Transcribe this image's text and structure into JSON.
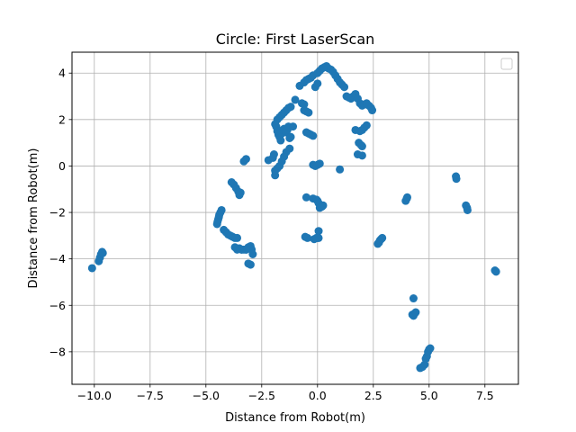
{
  "chart_data": {
    "type": "scatter",
    "title": "Circle: First LaserScan",
    "xlabel": "Distance from Robot(m)",
    "ylabel": "Distance from Robot(m)",
    "xlim": [
      -11.0,
      9.0
    ],
    "ylim": [
      -9.4,
      4.9
    ],
    "x_ticks": [
      -10.0,
      -7.5,
      -5.0,
      -2.5,
      0.0,
      2.5,
      5.0,
      7.5
    ],
    "x_tick_labels": [
      "−10.0",
      "−7.5",
      "−5.0",
      "−2.5",
      "0.0",
      "2.5",
      "5.0",
      "7.5"
    ],
    "y_ticks": [
      4,
      2,
      0,
      -2,
      -4,
      -6,
      -8
    ],
    "y_tick_labels": [
      "4",
      "2",
      "0",
      "−2",
      "−4",
      "−6",
      "−8"
    ],
    "grid": true,
    "legend": "top-right (empty)",
    "color": "#1f77b4",
    "series": [
      {
        "x": [
          -10.1,
          -9.8,
          -9.75,
          -9.7,
          -9.65,
          -9.62,
          -4.5,
          -4.48,
          -4.45,
          -4.42,
          -4.4,
          -4.35,
          -4.3,
          -4.2,
          -4.1,
          -4.0,
          -3.9,
          -3.8,
          -3.7,
          -3.6,
          -3.5,
          -3.4,
          -3.3,
          -3.2,
          -3.1,
          -3.0,
          -2.95,
          -2.9,
          -3.0,
          -3.1,
          -3.2,
          -3.4,
          -3.5,
          -3.6,
          -3.7,
          -3.85,
          -3.75,
          -3.65,
          -3.55,
          -3.5,
          -3.45,
          -3.3,
          -3.2,
          -2.2,
          -2.0,
          -1.95,
          -1.9,
          -1.9,
          -1.85,
          -1.8,
          -1.75,
          -1.7,
          -1.65,
          -1.6,
          -1.55,
          -1.5,
          -1.45,
          -1.4,
          -1.35,
          -1.3,
          -1.25,
          -1.2,
          -1.1,
          -1.8,
          -1.7,
          -1.6,
          -1.5,
          -1.4,
          -1.3,
          -1.2,
          -1.9,
          -1.8,
          -1.7,
          -1.6,
          -1.5,
          -1.4,
          -1.25,
          -1.0,
          -0.7,
          -0.6,
          -0.5,
          -0.4,
          -0.3,
          -0.2,
          -0.1,
          0.0,
          -0.8,
          -0.6,
          -0.5,
          -0.4,
          -0.3,
          -0.2,
          0.0,
          0.1,
          0.2,
          0.3,
          0.4,
          0.5,
          0.6,
          0.7,
          0.8,
          0.9,
          1.0,
          1.1,
          1.2,
          1.3,
          1.4,
          1.5,
          1.6,
          1.7,
          1.8,
          1.9,
          2.0,
          2.1,
          2.2,
          2.3,
          2.4,
          2.45,
          1.7,
          1.9,
          2.0,
          2.1,
          2.2,
          1.85,
          1.95,
          2.0,
          1.8,
          2.0,
          -0.6,
          -0.5,
          -0.4,
          -0.2,
          -0.1,
          0.0,
          0.1,
          -0.5,
          -0.2,
          -0.05,
          0.0,
          0.05,
          0.1,
          0.2,
          0.25,
          -0.05,
          0.0,
          0.05,
          1.0,
          -0.55,
          -0.45,
          -0.15,
          0.05,
          2.7,
          2.75,
          2.8,
          2.85,
          2.9,
          3.95,
          4.0,
          4.02,
          6.2,
          6.22,
          6.65,
          6.7,
          6.72,
          7.95,
          8.0,
          4.3,
          4.25,
          4.3,
          4.35,
          4.4,
          4.6,
          4.7,
          4.8,
          4.85,
          4.9,
          4.95,
          5.0,
          5.05
        ],
        "y": [
          -4.4,
          -4.1,
          -3.95,
          -3.8,
          -3.7,
          -3.75,
          -2.5,
          -2.4,
          -2.3,
          -2.2,
          -2.1,
          -2.0,
          -1.9,
          -2.75,
          -2.85,
          -2.95,
          -3.0,
          -3.05,
          -3.1,
          -3.1,
          -3.55,
          -3.6,
          -3.6,
          -3.6,
          -3.5,
          -3.45,
          -3.6,
          -3.8,
          -4.25,
          -4.2,
          -3.6,
          -3.6,
          -3.55,
          -3.6,
          -3.5,
          -0.7,
          -0.8,
          -0.95,
          -1.1,
          -1.25,
          -1.15,
          0.2,
          0.3,
          0.25,
          0.35,
          0.5,
          -0.4,
          1.8,
          1.7,
          1.5,
          1.35,
          1.25,
          1.1,
          1.4,
          1.55,
          1.6,
          1.5,
          1.45,
          1.55,
          1.7,
          1.2,
          1.25,
          1.7,
          2.0,
          2.1,
          2.2,
          2.3,
          2.4,
          2.5,
          2.55,
          -0.2,
          -0.1,
          0.0,
          0.2,
          0.4,
          0.6,
          0.75,
          2.85,
          2.7,
          2.65,
          1.45,
          1.4,
          1.35,
          1.3,
          3.4,
          3.55,
          3.45,
          3.6,
          3.7,
          3.75,
          3.8,
          3.9,
          4.0,
          4.1,
          4.2,
          4.25,
          4.3,
          4.2,
          4.15,
          4.05,
          3.9,
          3.75,
          3.6,
          3.5,
          3.4,
          3.0,
          2.95,
          2.9,
          3.0,
          3.1,
          2.9,
          2.7,
          2.6,
          2.65,
          2.7,
          2.6,
          2.5,
          2.4,
          1.55,
          1.5,
          1.55,
          1.65,
          1.75,
          1.0,
          0.9,
          0.85,
          0.5,
          0.45,
          2.4,
          2.35,
          2.3,
          0.05,
          0.0,
          0.05,
          0.1,
          -1.35,
          -1.4,
          -1.45,
          -1.5,
          -1.6,
          -1.8,
          -1.75,
          -1.7,
          -3.1,
          -3.1,
          -3.1,
          -0.15,
          -3.05,
          -3.1,
          -3.15,
          -2.8,
          -3.35,
          -3.3,
          -3.2,
          -3.15,
          -3.1,
          -1.5,
          -1.4,
          -1.35,
          -0.45,
          -0.55,
          -1.7,
          -1.8,
          -1.9,
          -4.5,
          -4.55,
          -5.7,
          -6.4,
          -6.45,
          -6.35,
          -6.3,
          -8.7,
          -8.65,
          -8.55,
          -8.3,
          -8.2,
          -8.0,
          -7.9,
          -7.85
        ]
      }
    ]
  }
}
